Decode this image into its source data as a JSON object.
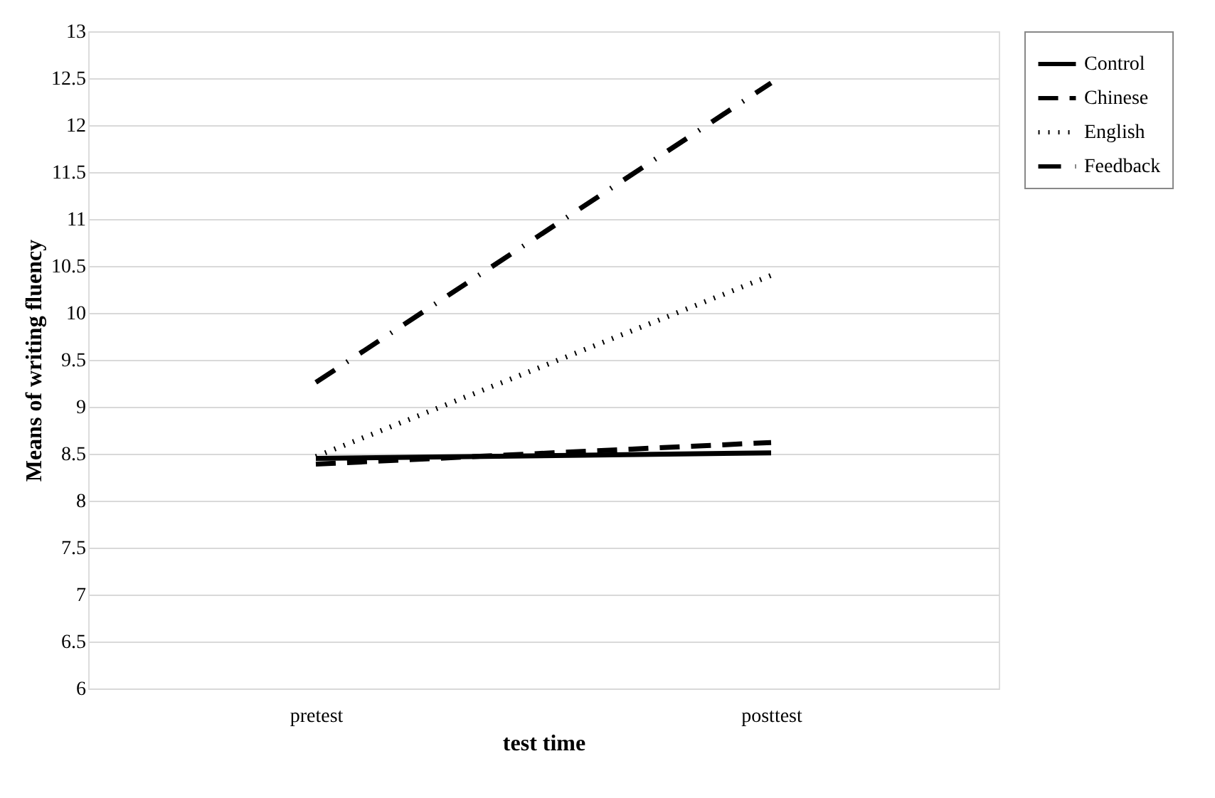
{
  "chart_data": {
    "type": "line",
    "xlabel": "test time",
    "ylabel": "Means of writing fluency",
    "categories": [
      "pretest",
      "posttest"
    ],
    "series": [
      {
        "name": "Control",
        "color": "#000000",
        "line_style": "solid",
        "values": [
          8.45,
          8.51
        ]
      },
      {
        "name": "Chinese",
        "color": "#000000",
        "line_style": "dashed",
        "values": [
          8.39,
          8.62
        ]
      },
      {
        "name": "English",
        "color": "#000000",
        "line_style": "dotted",
        "values": [
          8.47,
          10.4
        ]
      },
      {
        "name": "Feedback",
        "color": "#000000",
        "line_style": "dashdot",
        "values": [
          9.26,
          12.45
        ]
      }
    ],
    "ylim": [
      6,
      13
    ],
    "yticks": [
      6,
      6.5,
      7,
      7.5,
      8,
      8.5,
      9,
      9.5,
      10,
      10.5,
      11,
      11.5,
      12,
      12.5,
      13
    ],
    "grid": "y",
    "legend": "right",
    "marker": "none"
  }
}
